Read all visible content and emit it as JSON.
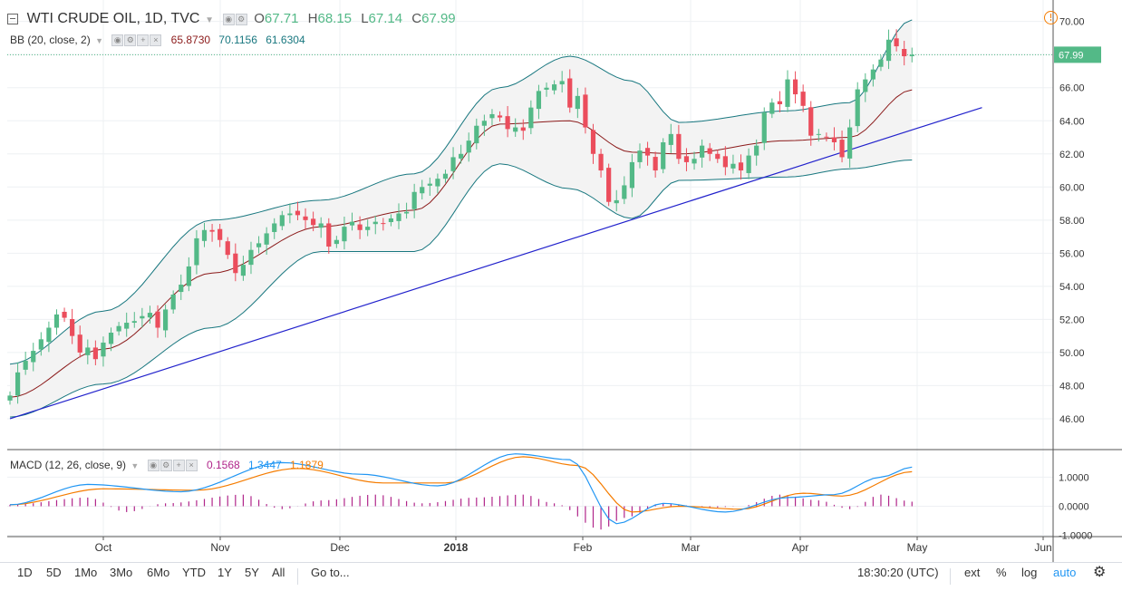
{
  "header": {
    "symbol": "WTI CRUDE OIL, 1D, TVC",
    "open_label": "O",
    "open": "67.71",
    "high_label": "H",
    "high": "68.15",
    "low_label": "L",
    "low": "67.14",
    "close_label": "C",
    "close": "67.99"
  },
  "bb_legend": {
    "label": "BB (20, close, 2)",
    "basis": "65.8730",
    "upper": "70.1156",
    "lower": "61.6304"
  },
  "macd_legend": {
    "label": "MACD (12, 26, close, 9)",
    "hist": "0.1568",
    "macd": "1.3447",
    "signal": "1.1879"
  },
  "last_price_label": "67.99",
  "toolbar": {
    "ranges": [
      "1D",
      "5D",
      "1Mo",
      "3Mo",
      "6Mo",
      "YTD",
      "1Y",
      "5Y",
      "All"
    ],
    "goto": "Go to...",
    "time": "18:30:20 (UTC)",
    "ext": "ext",
    "pct": "%",
    "log": "log",
    "auto": "auto"
  },
  "colors": {
    "up": "#53b987",
    "down": "#eb4d5c",
    "bb_band": "#18777f",
    "bb_basis": "#8b1a1a",
    "trendline": "#2222cc",
    "macd": "#2196f3",
    "signal": "#f57c00",
    "hist": "#b0258a"
  },
  "chart_data": [
    {
      "type": "candlestick",
      "title": "WTI CRUDE OIL, 1D, TVC",
      "x_axis_labels": [
        "Oct",
        "Nov",
        "Dec",
        "2018",
        "Feb",
        "Mar",
        "Apr",
        "May",
        "Jun"
      ],
      "y_ticks": [
        46,
        48,
        50,
        52,
        54,
        56,
        58,
        60,
        62,
        64,
        66,
        68,
        70
      ],
      "ylim": [
        44.3,
        71.0
      ],
      "grid": true,
      "close_series": [
        47.4,
        48.8,
        49.5,
        50.1,
        50.8,
        51.5,
        52.3,
        52.1,
        51.0,
        50.0,
        50.3,
        49.6,
        50.6,
        51.2,
        51.6,
        51.8,
        51.9,
        52.2,
        52.4,
        51.5,
        52.6,
        53.5,
        54.1,
        55.2,
        56.9,
        57.4,
        57.3,
        56.8,
        55.9,
        54.8,
        55.3,
        56.2,
        56.6,
        57.2,
        57.8,
        58.3,
        58.4,
        58.3,
        58.0,
        57.7,
        57.8,
        56.4,
        56.8,
        57.6,
        57.9,
        57.4,
        57.6,
        57.9,
        57.8,
        58.1,
        58.4,
        58.5,
        59.7,
        60.0,
        60.2,
        60.5,
        60.8,
        61.8,
        62.0,
        62.8,
        63.7,
        64.0,
        64.4,
        64.2,
        63.5,
        63.6,
        63.4,
        64.8,
        65.8,
        66.0,
        66.2,
        66.4,
        64.8,
        65.5,
        63.6,
        62.0,
        61.0,
        59.1,
        59.2,
        60.1,
        61.5,
        62.2,
        61.9,
        61.0,
        62.7,
        63.2,
        61.7,
        61.5,
        61.7,
        62.5,
        62.0,
        61.7,
        61.2,
        61.4,
        61.0,
        61.9,
        62.5,
        64.5,
        65.1,
        65.0,
        66.5,
        65.6,
        64.9,
        63.1,
        63.2,
        63.0,
        62.7,
        61.8,
        63.6,
        65.9,
        66.5,
        67.1,
        67.7,
        68.9,
        68.5,
        67.9,
        67.99
      ],
      "bb_upper_key_points": [
        [
          0,
          49.3
        ],
        [
          12,
          52.5
        ],
        [
          26,
          58.0
        ],
        [
          40,
          59.2
        ],
        [
          52,
          60.8
        ],
        [
          63,
          66.0
        ],
        [
          72,
          67.9
        ],
        [
          80,
          66.4
        ],
        [
          86,
          63.9
        ],
        [
          100,
          64.6
        ],
        [
          108,
          65.1
        ],
        [
          116,
          70.1
        ]
      ],
      "bb_basis_key_points": [
        [
          0,
          47.3
        ],
        [
          12,
          50.2
        ],
        [
          26,
          54.8
        ],
        [
          40,
          57.6
        ],
        [
          52,
          58.6
        ],
        [
          63,
          63.8
        ],
        [
          72,
          64.0
        ],
        [
          80,
          62.1
        ],
        [
          86,
          62.0
        ],
        [
          100,
          62.8
        ],
        [
          108,
          63.0
        ],
        [
          116,
          65.87
        ]
      ],
      "bb_lower_key_points": [
        [
          0,
          46.1
        ],
        [
          12,
          48.1
        ],
        [
          26,
          51.5
        ],
        [
          40,
          56.1
        ],
        [
          52,
          56.1
        ],
        [
          63,
          61.4
        ],
        [
          72,
          59.9
        ],
        [
          80,
          58.1
        ],
        [
          86,
          60.4
        ],
        [
          100,
          60.6
        ],
        [
          108,
          61.1
        ],
        [
          116,
          61.63
        ]
      ],
      "trendline": {
        "from": [
          0,
          46.0
        ],
        "to": [
          125,
          64.8
        ]
      },
      "last_price": 67.99
    },
    {
      "type": "line",
      "title": "MACD (12, 26, close, 9)",
      "y_ticks": [
        -1.0,
        0.0,
        1.0
      ],
      "y_tick_labels": [
        "-1.0000",
        "0.0000",
        "1.0000"
      ],
      "series": [
        {
          "name": "MACD",
          "key_points": [
            [
              0,
              0.05
            ],
            [
              10,
              0.75
            ],
            [
              22,
              0.5
            ],
            [
              35,
              1.5
            ],
            [
              45,
              1.1
            ],
            [
              55,
              0.7
            ],
            [
              65,
              1.8
            ],
            [
              72,
              1.6
            ],
            [
              78,
              -0.6
            ],
            [
              84,
              0.1
            ],
            [
              92,
              -0.2
            ],
            [
              100,
              0.3
            ],
            [
              106,
              0.4
            ],
            [
              112,
              1.0
            ],
            [
              116,
              1.3447
            ]
          ]
        },
        {
          "name": "Signal",
          "key_points": [
            [
              0,
              0.05
            ],
            [
              12,
              0.6
            ],
            [
              24,
              0.55
            ],
            [
              37,
              1.3
            ],
            [
              48,
              0.8
            ],
            [
              56,
              0.8
            ],
            [
              66,
              1.7
            ],
            [
              73,
              1.4
            ],
            [
              80,
              -0.2
            ],
            [
              86,
              0.0
            ],
            [
              94,
              -0.1
            ],
            [
              102,
              0.45
            ],
            [
              107,
              0.35
            ],
            [
              116,
              1.1879
            ]
          ]
        },
        {
          "name": "Histogram",
          "key_points": [
            [
              0,
              0.05
            ],
            [
              10,
              0.3
            ],
            [
              15,
              -0.2
            ],
            [
              20,
              0.1
            ],
            [
              30,
              0.4
            ],
            [
              35,
              -0.1
            ],
            [
              40,
              0.2
            ],
            [
              47,
              0.4
            ],
            [
              53,
              0.1
            ],
            [
              60,
              0.3
            ],
            [
              66,
              0.4
            ],
            [
              70,
              0.1
            ],
            [
              76,
              -0.8
            ],
            [
              79,
              -0.4
            ],
            [
              84,
              0.1
            ],
            [
              90,
              -0.05
            ],
            [
              94,
              0.0
            ],
            [
              99,
              0.4
            ],
            [
              104,
              0.2
            ],
            [
              108,
              -0.1
            ],
            [
              112,
              0.4
            ],
            [
              116,
              0.1568
            ]
          ]
        }
      ]
    }
  ]
}
